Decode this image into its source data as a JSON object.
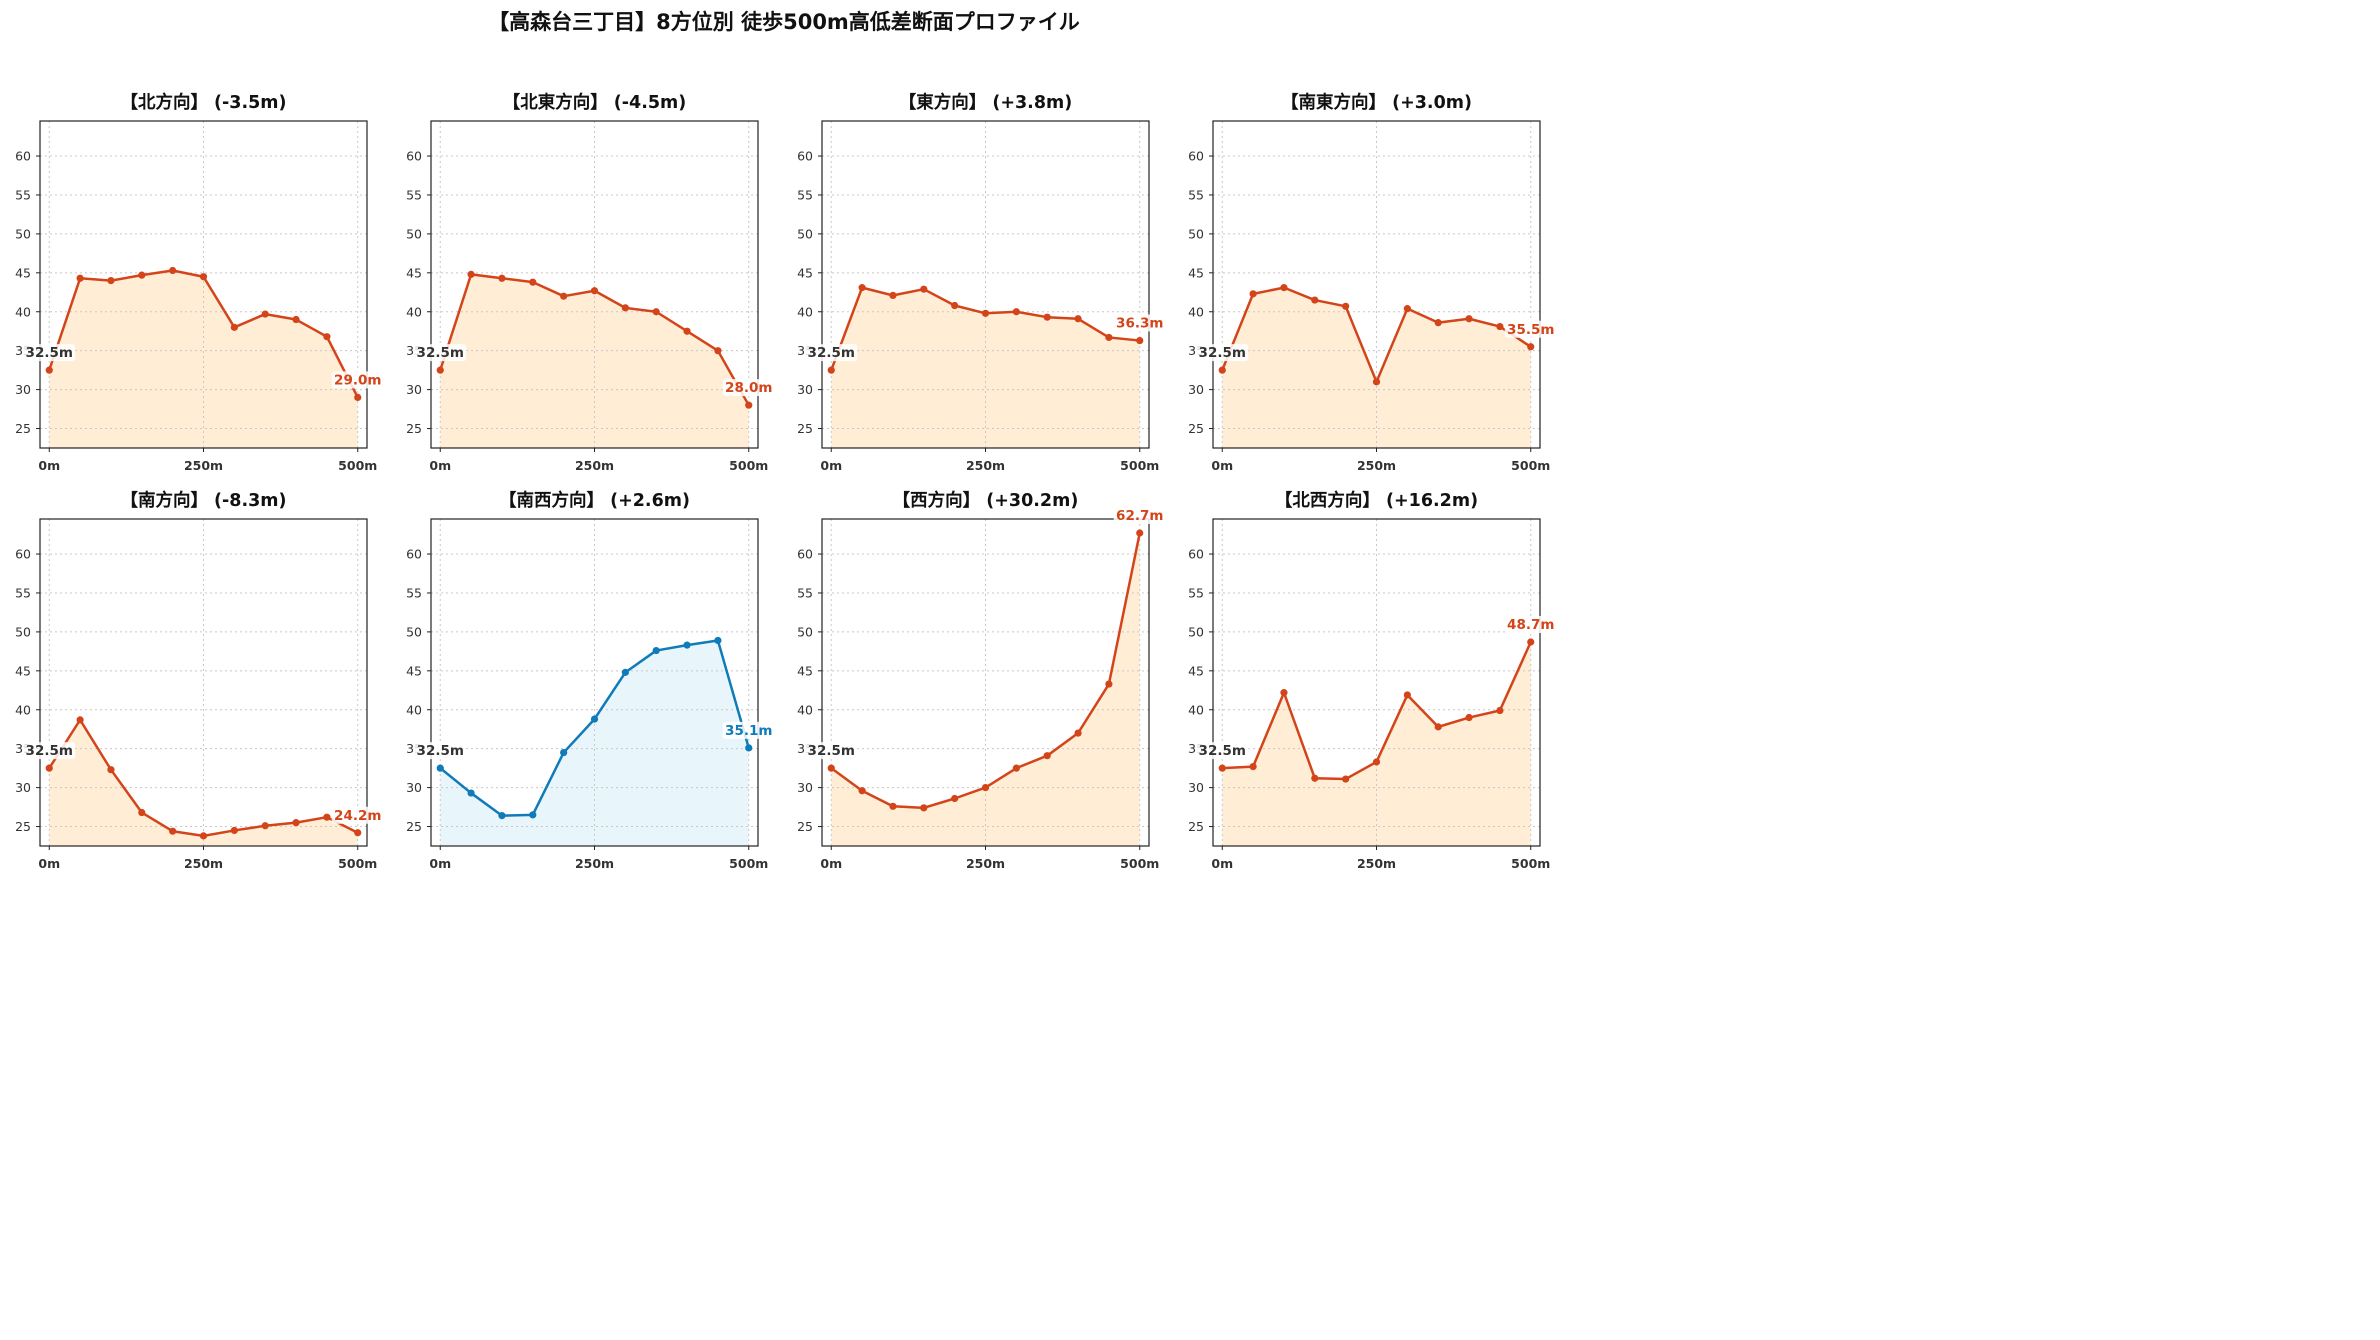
{
  "page": {
    "title": "【高森台三丁目】8方位別 徒歩500m高低差断面プロファイル"
  },
  "colors": {
    "line_default": "#d4441a",
    "fill_default": "#ffedd5",
    "line_highlight": "#0f7bb8",
    "fill_highlight": "#e8f6fc",
    "start_label": "#333333",
    "grid": "#c8c8c8"
  },
  "chart_data": [
    {
      "type": "area",
      "title": "【北方向】 (-3.5m)",
      "x": [
        0,
        50,
        100,
        150,
        200,
        250,
        300,
        350,
        400,
        450,
        500
      ],
      "values": [
        32.5,
        44.3,
        44.0,
        44.7,
        45.3,
        44.5,
        38.0,
        39.7,
        39.0,
        36.8,
        29.0
      ],
      "xticks": [
        "0m",
        "250m",
        "500m"
      ],
      "yticks": [
        25,
        30,
        35,
        40,
        45,
        50,
        55,
        60
      ],
      "ylim": [
        22.5,
        64.5
      ],
      "xlim": [
        -15,
        515
      ],
      "grid": true,
      "highlight": false,
      "start_label": "32.5m",
      "end_label": "29.0m"
    },
    {
      "type": "area",
      "title": "【北東方向】 (-4.5m)",
      "x": [
        0,
        50,
        100,
        150,
        200,
        250,
        300,
        350,
        400,
        450,
        500
      ],
      "values": [
        32.5,
        44.8,
        44.3,
        43.8,
        42.0,
        42.7,
        40.5,
        40.0,
        37.5,
        35.0,
        28.0
      ],
      "xticks": [
        "0m",
        "250m",
        "500m"
      ],
      "yticks": [
        25,
        30,
        35,
        40,
        45,
        50,
        55,
        60
      ],
      "ylim": [
        22.5,
        64.5
      ],
      "xlim": [
        -15,
        515
      ],
      "grid": true,
      "highlight": false,
      "start_label": "32.5m",
      "end_label": "28.0m"
    },
    {
      "type": "area",
      "title": "【東方向】 (+3.8m)",
      "x": [
        0,
        50,
        100,
        150,
        200,
        250,
        300,
        350,
        400,
        450,
        500
      ],
      "values": [
        32.5,
        43.1,
        42.1,
        42.9,
        40.8,
        39.8,
        40.0,
        39.3,
        39.1,
        36.7,
        36.3
      ],
      "xticks": [
        "0m",
        "250m",
        "500m"
      ],
      "yticks": [
        25,
        30,
        35,
        40,
        45,
        50,
        55,
        60
      ],
      "ylim": [
        22.5,
        64.5
      ],
      "xlim": [
        -15,
        515
      ],
      "grid": true,
      "highlight": false,
      "start_label": "32.5m",
      "end_label": "36.3m"
    },
    {
      "type": "area",
      "title": "【南東方向】 (+3.0m)",
      "x": [
        0,
        50,
        100,
        150,
        200,
        250,
        300,
        350,
        400,
        450,
        500
      ],
      "values": [
        32.5,
        42.3,
        43.1,
        41.5,
        40.7,
        31.0,
        40.4,
        38.6,
        39.1,
        38.1,
        35.5
      ],
      "xticks": [
        "0m",
        "250m",
        "500m"
      ],
      "yticks": [
        25,
        30,
        35,
        40,
        45,
        50,
        55,
        60
      ],
      "ylim": [
        22.5,
        64.5
      ],
      "xlim": [
        -15,
        515
      ],
      "grid": true,
      "highlight": false,
      "start_label": "32.5m",
      "end_label": "35.5m"
    },
    {
      "type": "area",
      "title": "【南方向】 (-8.3m)",
      "x": [
        0,
        50,
        100,
        150,
        200,
        250,
        300,
        350,
        400,
        450,
        500
      ],
      "values": [
        32.5,
        38.7,
        32.3,
        26.8,
        24.4,
        23.8,
        24.5,
        25.1,
        25.5,
        26.2,
        24.2
      ],
      "xticks": [
        "0m",
        "250m",
        "500m"
      ],
      "yticks": [
        25,
        30,
        35,
        40,
        45,
        50,
        55,
        60
      ],
      "ylim": [
        22.5,
        64.5
      ],
      "xlim": [
        -15,
        515
      ],
      "grid": true,
      "highlight": false,
      "start_label": "32.5m",
      "end_label": "24.2m"
    },
    {
      "type": "area",
      "title": "【南西方向】 (+2.6m)",
      "x": [
        0,
        50,
        100,
        150,
        200,
        250,
        300,
        350,
        400,
        450,
        500
      ],
      "values": [
        32.5,
        29.3,
        26.4,
        26.5,
        34.5,
        38.8,
        44.8,
        47.6,
        48.3,
        48.9,
        35.1
      ],
      "xticks": [
        "0m",
        "250m",
        "500m"
      ],
      "yticks": [
        25,
        30,
        35,
        40,
        45,
        50,
        55,
        60
      ],
      "ylim": [
        22.5,
        64.5
      ],
      "xlim": [
        -15,
        515
      ],
      "grid": true,
      "highlight": true,
      "start_label": "32.5m",
      "end_label": "35.1m"
    },
    {
      "type": "area",
      "title": "【西方向】 (+30.2m)",
      "x": [
        0,
        50,
        100,
        150,
        200,
        250,
        300,
        350,
        400,
        450,
        500
      ],
      "values": [
        32.5,
        29.6,
        27.6,
        27.4,
        28.6,
        30.0,
        32.5,
        34.1,
        37.0,
        43.3,
        62.7
      ],
      "xticks": [
        "0m",
        "250m",
        "500m"
      ],
      "yticks": [
        25,
        30,
        35,
        40,
        45,
        50,
        55,
        60
      ],
      "ylim": [
        22.5,
        64.5
      ],
      "xlim": [
        -15,
        515
      ],
      "grid": true,
      "highlight": false,
      "start_label": "32.5m",
      "end_label": "62.7m"
    },
    {
      "type": "area",
      "title": "【北西方向】 (+16.2m)",
      "x": [
        0,
        50,
        100,
        150,
        200,
        250,
        300,
        350,
        400,
        450,
        500
      ],
      "values": [
        32.5,
        32.7,
        42.2,
        31.2,
        31.1,
        33.3,
        41.9,
        37.8,
        39.0,
        39.9,
        48.7
      ],
      "xticks": [
        "0m",
        "250m",
        "500m"
      ],
      "yticks": [
        25,
        30,
        35,
        40,
        45,
        50,
        55,
        60
      ],
      "ylim": [
        22.5,
        64.5
      ],
      "xlim": [
        -15,
        515
      ],
      "grid": true,
      "highlight": false,
      "start_label": "32.5m",
      "end_label": "48.7m"
    }
  ]
}
